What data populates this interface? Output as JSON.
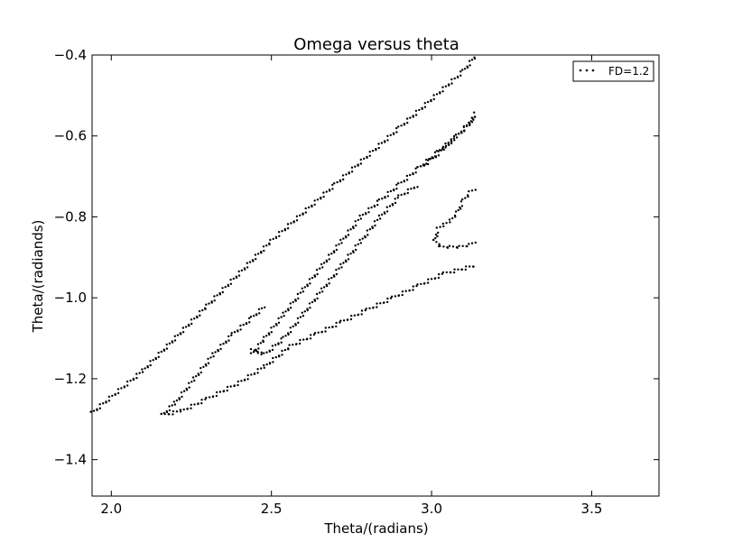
{
  "chart_data": {
    "type": "scatter",
    "title": "Omega versus theta",
    "xlabel": "Theta/(radians)",
    "ylabel": "Theta/(radiands)",
    "xlim": [
      1.94,
      3.71
    ],
    "ylim": [
      -1.49,
      -0.4
    ],
    "xticks": [
      2.0,
      2.5,
      3.0,
      3.5
    ],
    "xtick_labels": [
      "2.0",
      "2.5",
      "3.0",
      "3.5"
    ],
    "yticks": [
      -0.4,
      -0.6,
      -0.8,
      -1.0,
      -1.2,
      -1.4
    ],
    "ytick_labels": [
      "−0.4",
      "−0.6",
      "−0.8",
      "−1.0",
      "−1.2",
      "−1.4"
    ],
    "grid": false,
    "legend_position": "top-right",
    "series": [
      {
        "name": "FD=1.2",
        "color": "#000000",
        "marker": "dot",
        "segments": [
          {
            "x": [
              1.94,
              2.1,
              2.3,
              2.5,
              2.7,
              2.9,
              3.1,
              3.14
            ],
            "y": [
              -1.285,
              -1.18,
              -1.02,
              -0.86,
              -0.72,
              -0.58,
              -0.44,
              -0.4
            ]
          },
          {
            "x": [
              2.16,
              2.2,
              2.26,
              2.32,
              2.38,
              2.44,
              2.48
            ],
            "y": [
              -1.29,
              -1.26,
              -1.2,
              -1.14,
              -1.09,
              -1.05,
              -1.02
            ]
          },
          {
            "x": [
              2.16,
              2.22,
              2.3,
              2.4,
              2.48,
              2.56,
              2.64,
              2.72,
              2.8,
              2.88,
              2.96,
              3.04,
              3.14
            ],
            "y": [
              -1.29,
              -1.28,
              -1.25,
              -1.21,
              -1.17,
              -1.12,
              -1.09,
              -1.06,
              -1.03,
              -1.0,
              -0.97,
              -0.94,
              -0.92
            ]
          },
          {
            "x": [
              2.44,
              2.48,
              2.54,
              2.6,
              2.66,
              2.72,
              2.78,
              2.84,
              2.9,
              2.96,
              3.02,
              3.08,
              3.14
            ],
            "y": [
              -1.14,
              -1.1,
              -1.04,
              -0.98,
              -0.92,
              -0.86,
              -0.8,
              -0.76,
              -0.72,
              -0.68,
              -0.64,
              -0.6,
              -0.55
            ]
          },
          {
            "x": [
              2.44,
              2.48,
              2.54,
              2.6,
              2.66,
              2.72,
              2.78,
              2.84,
              2.9,
              2.96
            ],
            "y": [
              -1.13,
              -1.14,
              -1.1,
              -1.04,
              -0.98,
              -0.92,
              -0.86,
              -0.8,
              -0.75,
              -0.72
            ]
          },
          {
            "x": [
              2.96,
              3.0,
              3.04,
              3.08,
              3.12,
              3.14
            ],
            "y": [
              -0.68,
              -0.66,
              -0.63,
              -0.6,
              -0.57,
              -0.54
            ]
          },
          {
            "x": [
              3.01,
              3.02,
              3.04,
              3.06,
              3.08,
              3.1,
              3.12,
              3.14
            ],
            "y": [
              -0.86,
              -0.83,
              -0.82,
              -0.81,
              -0.79,
              -0.76,
              -0.74,
              -0.73
            ]
          },
          {
            "x": [
              3.01,
              3.03,
              3.06,
              3.09,
              3.12,
              3.14
            ],
            "y": [
              -0.86,
              -0.875,
              -0.875,
              -0.875,
              -0.87,
              -0.86
            ]
          }
        ]
      }
    ]
  }
}
